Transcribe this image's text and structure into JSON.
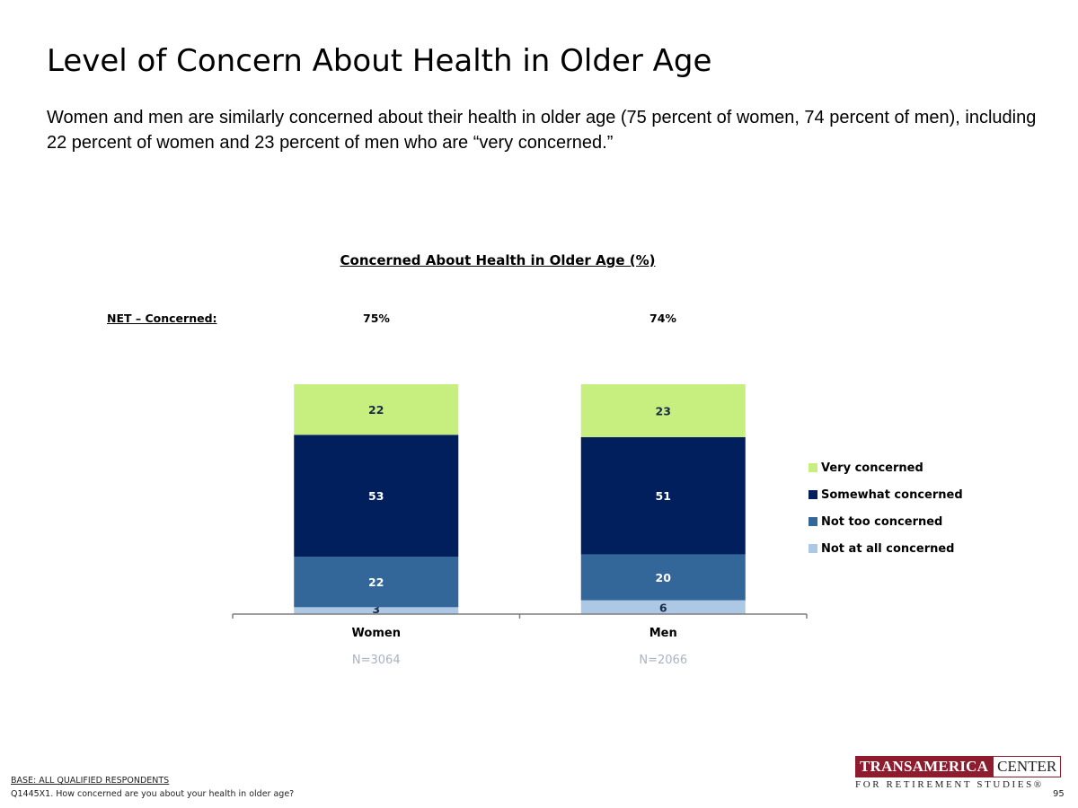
{
  "header": {
    "title": "Level of Concern About Health in Older Age",
    "subtitle": "Women and men are similarly concerned about their health in older age (75 percent of women, 74 percent of men), including 22 percent of women and 23 percent of men who are “very concerned.”"
  },
  "net": {
    "label": "NET – Concerned:",
    "values": [
      "75%",
      "74%"
    ]
  },
  "chart_data": {
    "type": "bar",
    "stacked": true,
    "title": "Concerned About Health in Older Age (%)",
    "xlabel": "",
    "ylabel": "",
    "ylim": [
      0,
      100
    ],
    "grid": false,
    "legend_position": "right",
    "categories": [
      "Women",
      "Men"
    ],
    "sample_sizes": [
      "N=3064",
      "N=2066"
    ],
    "series": [
      {
        "name": "Not at all concerned",
        "color": "#adc8e4",
        "values": [
          3,
          6
        ]
      },
      {
        "name": "Not too concerned",
        "color": "#336699",
        "values": [
          22,
          20
        ]
      },
      {
        "name": "Somewhat concerned",
        "color": "#001f5c",
        "values": [
          53,
          51
        ]
      },
      {
        "name": "Very concerned",
        "color": "#c6ef7f",
        "values": [
          22,
          23
        ]
      }
    ],
    "legend_order": [
      "Very concerned",
      "Somewhat concerned",
      "Not too concerned",
      "Not at all concerned"
    ]
  },
  "footer": {
    "base": "BASE:  ALL QUALIFIED RESPONDENTS",
    "question": "Q1445X1. How concerned are you about your health in older age?",
    "page_number": "95"
  },
  "logo": {
    "name": "TRANSAMERICA",
    "center": "CENTER",
    "tagline": "FOR RETIREMENT STUDIES®"
  },
  "colors": {
    "sample_size_text": "#a9b4c2",
    "logo_accent": "#8c1c2e"
  }
}
